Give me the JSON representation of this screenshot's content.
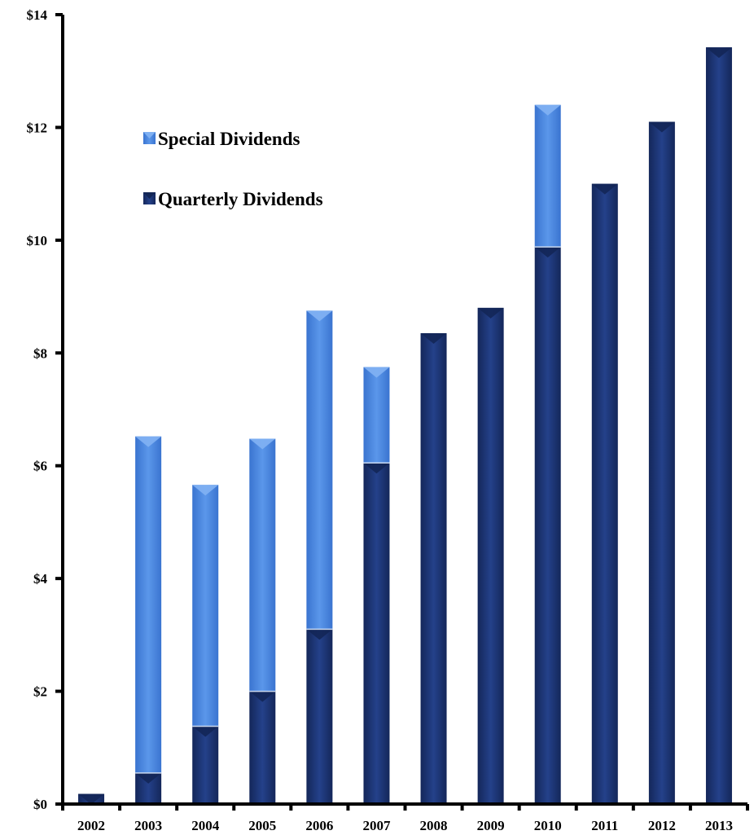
{
  "chart_data": {
    "type": "bar",
    "stacked": true,
    "title": "",
    "xlabel": "",
    "ylabel": "",
    "ylim": [
      0,
      14
    ],
    "yticks": [
      "$0",
      "$2",
      "$4",
      "$6",
      "$8",
      "$10",
      "$12",
      "$14"
    ],
    "categories": [
      "2002",
      "2003",
      "2004",
      "2005",
      "2006",
      "2007",
      "2008",
      "2009",
      "2010",
      "2011",
      "2012",
      "2013"
    ],
    "series": [
      {
        "name": "Quarterly Dividends",
        "color": "#1f3a7a",
        "values": [
          0.18,
          0.55,
          1.38,
          2.0,
          3.1,
          6.05,
          8.35,
          8.8,
          9.88,
          11.0,
          12.1,
          13.42
        ]
      },
      {
        "name": "Special Dividends",
        "color": "#4a86e0",
        "values": [
          0,
          5.97,
          4.28,
          4.48,
          5.65,
          1.7,
          0,
          0,
          2.52,
          0,
          0,
          0
        ]
      }
    ],
    "legend": "upper-left",
    "grid": false
  },
  "colors": {
    "quarterly": "#1f3a7a",
    "quarterly_dark": "#132656",
    "special": "#4a86e0",
    "special_light": "#7fb0f2",
    "axis": "#000000"
  }
}
